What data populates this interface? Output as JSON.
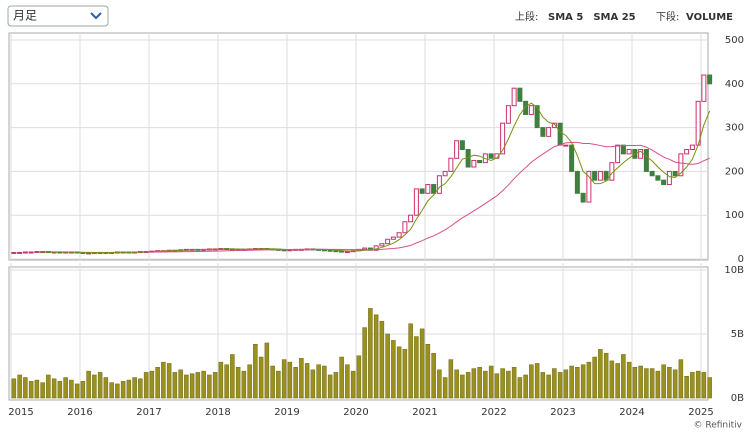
{
  "header": {
    "period_select": "月足",
    "upper_label": "上段:",
    "lower_label": "下段:",
    "credit": "© Refinitiv"
  },
  "chart_data": [
    {
      "type": "candlestick",
      "categories": [
        "2015",
        null,
        null,
        null,
        null,
        null,
        null,
        null,
        null,
        null,
        null,
        null,
        "2016",
        null,
        null,
        null,
        null,
        null,
        null,
        null,
        null,
        null,
        null,
        null,
        "2017",
        null,
        null,
        null,
        null,
        null,
        null,
        null,
        null,
        null,
        null,
        null,
        "2018",
        null,
        null,
        null,
        null,
        null,
        null,
        null,
        null,
        null,
        null,
        null,
        "2019",
        null,
        null,
        null,
        null,
        null,
        null,
        null,
        null,
        null,
        null,
        null,
        "2020",
        null,
        null,
        null,
        null,
        null,
        null,
        null,
        null,
        null,
        null,
        null,
        "2021",
        null,
        null,
        null,
        null,
        null,
        null,
        null,
        null,
        null,
        null,
        null,
        "2022",
        null,
        null,
        null,
        null,
        null,
        null,
        null,
        null,
        null,
        null,
        null,
        "2023",
        null,
        null,
        null,
        null,
        null,
        null,
        null,
        null,
        null,
        null,
        null,
        "2024",
        null,
        null,
        null,
        null,
        null,
        null,
        null,
        null,
        null,
        null,
        null,
        "2025",
        null
      ],
      "values": [
        15,
        15,
        16,
        16,
        17,
        17,
        16,
        16,
        15,
        16,
        16,
        15,
        14,
        14,
        15,
        15,
        15,
        15,
        16,
        16,
        15,
        16,
        17,
        17,
        18,
        19,
        19,
        20,
        20,
        21,
        22,
        22,
        21,
        22,
        23,
        23,
        24,
        23,
        22,
        22,
        22,
        23,
        24,
        24,
        23,
        22,
        21,
        20,
        21,
        22,
        22,
        23,
        22,
        21,
        20,
        19,
        18,
        17,
        17,
        19,
        22,
        25,
        20,
        30,
        35,
        45,
        50,
        60,
        85,
        100,
        160,
        150,
        170,
        150,
        190,
        200,
        230,
        270,
        250,
        210,
        225,
        220,
        240,
        230,
        240,
        310,
        350,
        390,
        360,
        330,
        350,
        300,
        280,
        300,
        310,
        260,
        260,
        200,
        150,
        130,
        200,
        180,
        200,
        180,
        220,
        260,
        240,
        250,
        230,
        250,
        200,
        190,
        180,
        170,
        200,
        190,
        240,
        250,
        260,
        360,
        420,
        400
      ],
      "up_color": "#c8306e",
      "down_color": "#3f7f3f",
      "series": [
        {
          "name": "SMA 5",
          "color": "#7a8f10",
          "period": 5
        },
        {
          "name": "SMA 25",
          "color": "#d8508a",
          "period": 25
        }
      ],
      "ylim": [
        0,
        500
      ],
      "yticks": [
        0,
        100,
        200,
        300,
        400,
        500
      ],
      "grid": true
    },
    {
      "type": "bar",
      "series": [
        {
          "name": "VOLUME",
          "color": "#9a9020"
        }
      ],
      "values": [
        1.5,
        1.8,
        1.6,
        1.3,
        1.4,
        1.2,
        1.8,
        1.5,
        1.3,
        1.6,
        1.4,
        1.1,
        1.3,
        2.1,
        1.8,
        2.0,
        1.6,
        1.2,
        1.1,
        1.3,
        1.4,
        1.6,
        1.5,
        2.0,
        2.1,
        2.4,
        2.8,
        2.7,
        2.0,
        2.2,
        1.8,
        1.9,
        2.0,
        2.1,
        1.8,
        2.0,
        2.8,
        2.6,
        3.4,
        2.4,
        2.1,
        2.6,
        4.2,
        3.2,
        4.3,
        2.5,
        2.1,
        3.0,
        2.8,
        2.4,
        3.1,
        2.7,
        2.2,
        2.6,
        2.5,
        1.8,
        2.0,
        3.2,
        2.6,
        2.1,
        3.3,
        5.5,
        7.0,
        6.5,
        6.0,
        5.0,
        4.5,
        4.0,
        3.8,
        5.8,
        4.8,
        5.4,
        4.2,
        3.5,
        2.2,
        1.6,
        3.0,
        2.2,
        1.8,
        2.0,
        2.3,
        2.4,
        2.1,
        2.5,
        1.9,
        2.3,
        2.1,
        2.4,
        1.6,
        1.8,
        2.6,
        2.7,
        2.0,
        1.8,
        2.3,
        2.0,
        2.2,
        2.5,
        2.4,
        2.6,
        2.8,
        3.2,
        3.8,
        3.5,
        2.9,
        2.7,
        3.4,
        2.8,
        2.4,
        2.5,
        2.3,
        2.3,
        2.1,
        2.6,
        2.4,
        2.2,
        3.0,
        1.7,
        2.0,
        2.1,
        2.0,
        1.6
      ],
      "ylim": [
        0,
        10
      ],
      "yticks": [
        {
          "value": 0,
          "label": "0B"
        },
        {
          "value": 5,
          "label": "5B"
        },
        {
          "value": 10,
          "label": "10B"
        }
      ],
      "grid": true
    }
  ]
}
